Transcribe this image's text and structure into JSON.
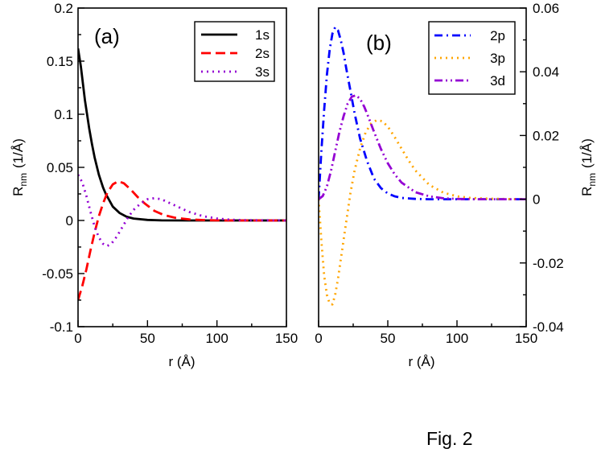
{
  "figure_caption": "Fig. 2",
  "colors": {
    "1s": "#000000",
    "2s": "#ff0000",
    "3s": "#9400d3",
    "2p": "#0000ff",
    "3p": "#ffa500",
    "3d": "#9400d3"
  },
  "chart_data": [
    {
      "type": "line",
      "panel_label": "(a)",
      "xlabel": "r (Å)",
      "ylabel_main": "R",
      "ylabel_sub": "nm",
      "ylabel_unit": "(1/Å)",
      "xlim": [
        0,
        150
      ],
      "ylim": [
        -0.1,
        0.2
      ],
      "x_ticks": [
        0,
        50,
        100,
        150
      ],
      "x_tick_labels": [
        "0",
        "50",
        "100",
        "150"
      ],
      "y_ticks": [
        -0.1,
        -0.05,
        0,
        0.05,
        0.1,
        0.15,
        0.2
      ],
      "y_tick_labels": [
        "-0.1",
        "-0.05",
        "0",
        "0.05",
        "0.1",
        "0.15",
        "0.2"
      ],
      "y_axis_side": "left",
      "legend_position": "top-right",
      "series": [
        {
          "name": "1s",
          "style": "solid",
          "x": [
            0,
            2,
            5,
            8,
            10,
            12,
            15,
            18,
            20,
            25,
            30,
            35,
            40,
            50,
            60,
            80,
            100,
            150
          ],
          "y": [
            0.162,
            0.145,
            0.113,
            0.087,
            0.072,
            0.059,
            0.043,
            0.031,
            0.025,
            0.013,
            0.007,
            0.0035,
            0.0018,
            0.0005,
            0.0001,
            0,
            0,
            0
          ]
        },
        {
          "name": "2s",
          "style": "dash",
          "x": [
            0,
            3,
            6,
            9,
            12,
            15,
            18,
            21,
            25,
            29,
            33,
            38,
            43,
            48,
            55,
            62,
            70,
            80,
            90,
            100,
            120,
            150
          ],
          "y": [
            -0.075,
            -0.062,
            -0.046,
            -0.028,
            -0.011,
            0.004,
            0.016,
            0.026,
            0.034,
            0.037,
            0.035,
            0.029,
            0.022,
            0.016,
            0.009,
            0.005,
            0.0025,
            0.001,
            0.0004,
            0.0001,
            0,
            0
          ]
        },
        {
          "name": "3s",
          "style": "dot",
          "x": [
            0,
            3,
            6,
            9,
            12,
            15,
            18,
            21,
            24,
            28,
            32,
            36,
            40,
            45,
            50,
            55,
            60,
            65,
            70,
            75,
            80,
            90,
            100,
            110,
            120,
            150
          ],
          "y": [
            0.043,
            0.036,
            0.023,
            0.008,
            -0.006,
            -0.016,
            -0.022,
            -0.024,
            -0.022,
            -0.015,
            -0.006,
            0.003,
            0.01,
            0.016,
            0.02,
            0.021,
            0.02,
            0.017,
            0.014,
            0.011,
            0.008,
            0.004,
            0.0018,
            0.0007,
            0.0003,
            0
          ]
        }
      ]
    },
    {
      "type": "line",
      "panel_label": "(b)",
      "xlabel": "r (Å)",
      "ylabel_main": "R",
      "ylabel_sub": "nm",
      "ylabel_unit": "(1/Å)",
      "xlim": [
        0,
        150
      ],
      "ylim": [
        -0.04,
        0.06
      ],
      "x_ticks": [
        0,
        50,
        100,
        150
      ],
      "x_tick_labels": [
        "0",
        "50",
        "100",
        "150"
      ],
      "y_ticks": [
        -0.04,
        -0.02,
        0,
        0.02,
        0.04,
        0.06
      ],
      "y_tick_labels": [
        "-0.04",
        "-0.02",
        "0",
        "0.02",
        "0.04",
        "0.06"
      ],
      "y_axis_side": "right",
      "legend_position": "top-right",
      "series": [
        {
          "name": "2p",
          "style": "dashdot",
          "x": [
            0,
            2,
            4,
            6,
            8,
            10,
            12,
            14,
            16,
            18,
            20,
            23,
            26,
            30,
            35,
            40,
            45,
            50,
            55,
            60,
            70,
            80,
            90,
            100,
            150
          ],
          "y": [
            0,
            0.015,
            0.028,
            0.039,
            0.047,
            0.052,
            0.054,
            0.053,
            0.05,
            0.046,
            0.041,
            0.034,
            0.027,
            0.019,
            0.012,
            0.0065,
            0.0035,
            0.0018,
            0.0009,
            0.0004,
            0.0001,
            0,
            0,
            0,
            0
          ]
        },
        {
          "name": "3p",
          "style": "dot",
          "x": [
            0,
            2,
            4,
            6,
            8,
            10,
            12,
            14,
            17,
            20,
            23,
            26,
            30,
            34,
            38,
            42,
            46,
            50,
            55,
            60,
            65,
            70,
            80,
            90,
            100,
            110,
            120,
            130,
            150
          ],
          "y": [
            0,
            -0.013,
            -0.024,
            -0.03,
            -0.0328,
            -0.033,
            -0.03,
            -0.025,
            -0.016,
            -0.007,
            0.002,
            0.009,
            0.016,
            0.021,
            0.0238,
            0.0248,
            0.0245,
            0.0228,
            0.0195,
            0.0158,
            0.0122,
            0.009,
            0.0045,
            0.0021,
            0.0009,
            0.0004,
            0.0002,
            0.0001,
            0
          ]
        },
        {
          "name": "3d",
          "style": "dashdotdot",
          "x": [
            0,
            3,
            6,
            9,
            12,
            15,
            18,
            21,
            24,
            27,
            30,
            33,
            36,
            40,
            45,
            50,
            55,
            60,
            70,
            80,
            90,
            100,
            110,
            120,
            150
          ],
          "y": [
            0,
            0.001,
            0.004,
            0.009,
            0.015,
            0.021,
            0.026,
            0.03,
            0.0322,
            0.0326,
            0.0315,
            0.029,
            0.0258,
            0.0212,
            0.0158,
            0.0113,
            0.0078,
            0.0052,
            0.0022,
            0.0009,
            0.0003,
            0.0001,
            0,
            0,
            0
          ]
        }
      ]
    }
  ]
}
